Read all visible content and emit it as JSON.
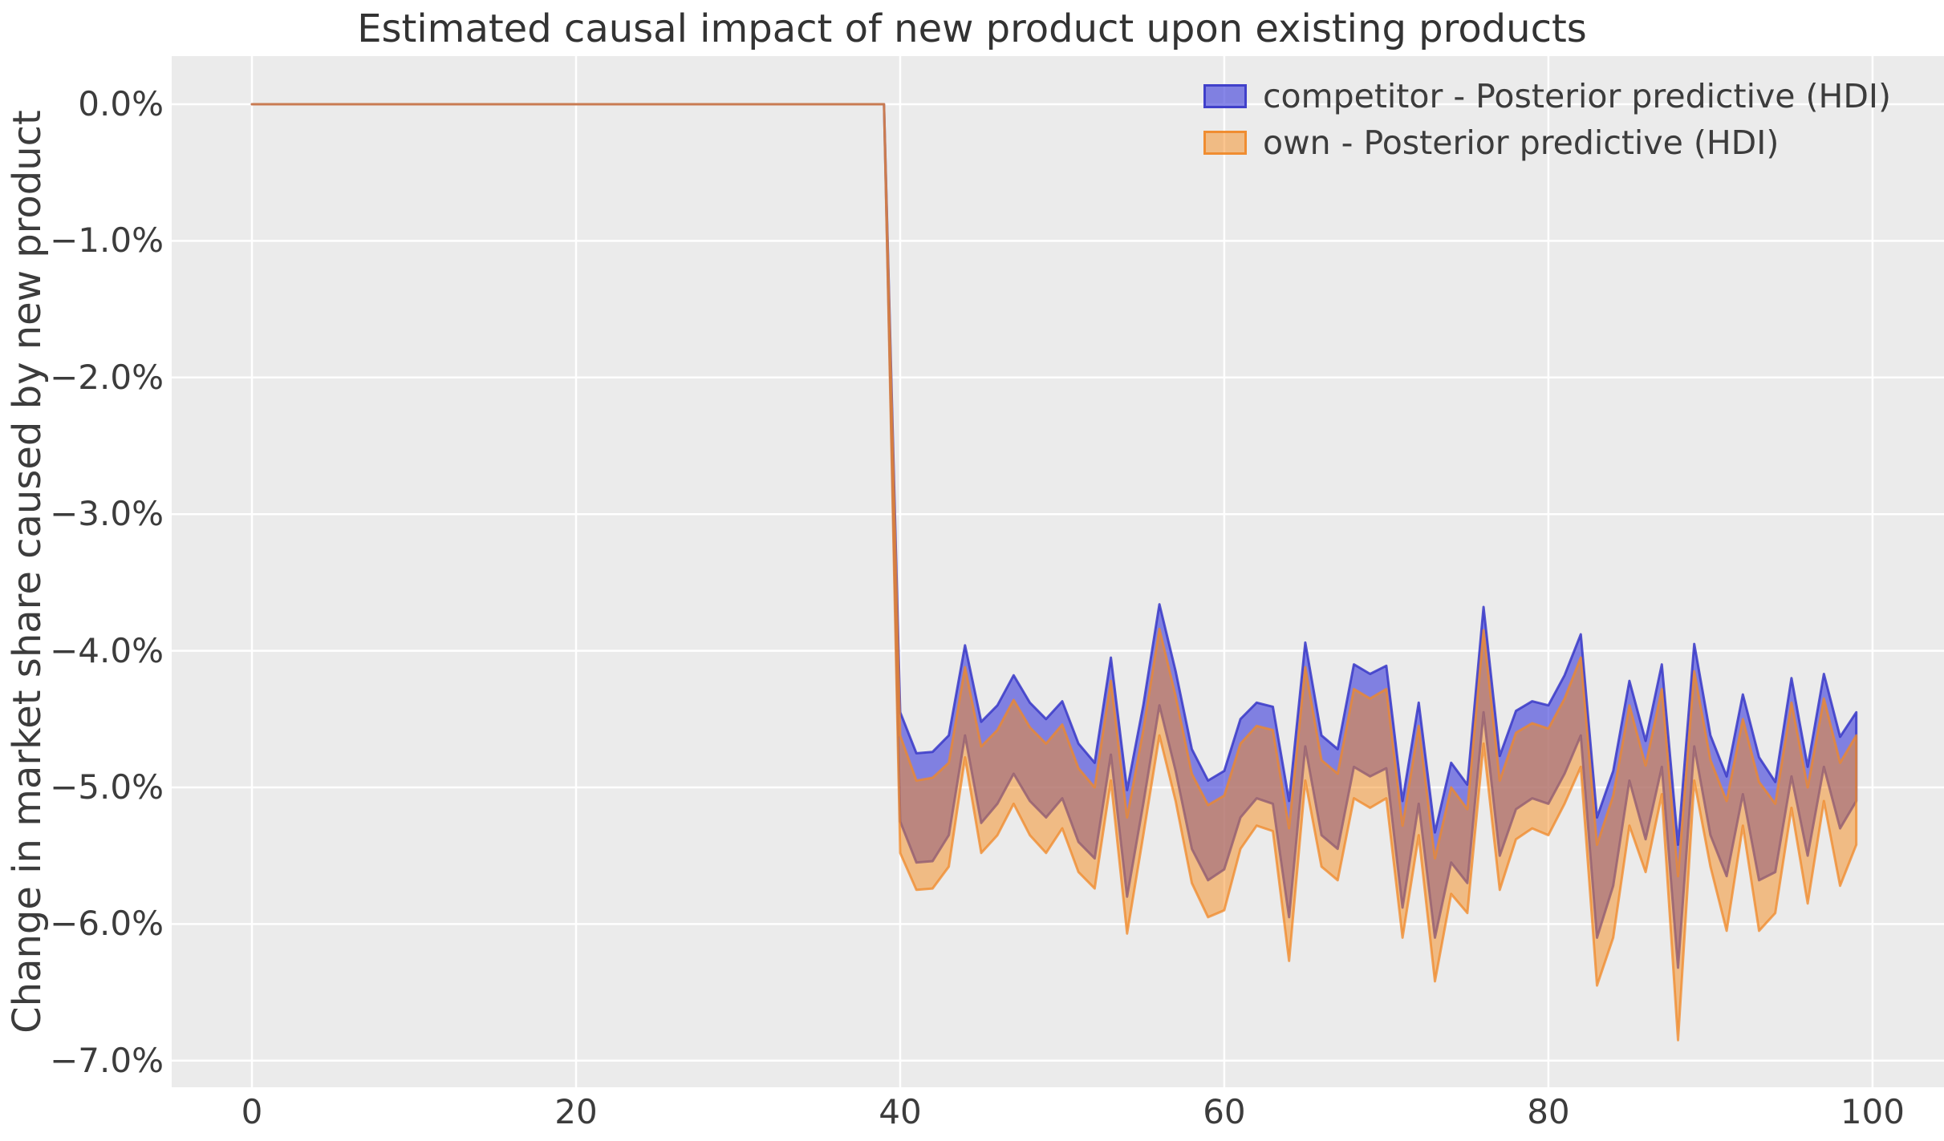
{
  "chart_data": {
    "type": "area",
    "title": "Estimated causal impact of new product upon existing products",
    "xlabel": "",
    "ylabel": "Change in market share caused by new product",
    "legend_position": "upper right",
    "grid": true,
    "plot_bg": "#ebebeb",
    "grid_color": "#ffffff",
    "text_color": "#3c3c3c",
    "xlim": [
      -4.95,
      104.41
    ],
    "ylim": [
      -7.195,
      0.352
    ],
    "x_ticks": [
      {
        "label": "0",
        "value": 0
      },
      {
        "label": "20",
        "value": 20
      },
      {
        "label": "40",
        "value": 40
      },
      {
        "label": "60",
        "value": 60
      },
      {
        "label": "80",
        "value": 80
      },
      {
        "label": "100",
        "value": 100
      }
    ],
    "y_ticks": [
      {
        "label": "0.0%",
        "value": 0
      },
      {
        "label": "−1.0%",
        "value": -1
      },
      {
        "label": "−2.0%",
        "value": -2
      },
      {
        "label": "−3.0%",
        "value": -3
      },
      {
        "label": "−4.0%",
        "value": -4
      },
      {
        "label": "−5.0%",
        "value": -5
      },
      {
        "label": "−6.0%",
        "value": -6
      },
      {
        "label": "−7.0%",
        "value": -7
      }
    ],
    "x": {
      "start": 0,
      "step": 1,
      "n": 100,
      "intervention_index": 40
    },
    "units": "percent change in market share; HDI bands are zero for x < 40 (pre-intervention) and negative after the new product launch at x = 40",
    "series": [
      {
        "name": "competitor - Posterior predictive (HDI)",
        "fill": "#4646dc",
        "fill_opacity": 0.65,
        "edge": "#3838c8",
        "edge_opacity": 0.85,
        "edge_width": 3,
        "hi": [
          0,
          0,
          0,
          0,
          0,
          0,
          0,
          0,
          0,
          0,
          0,
          0,
          0,
          0,
          0,
          0,
          0,
          0,
          0,
          0,
          0,
          0,
          0,
          0,
          0,
          0,
          0,
          0,
          0,
          0,
          0,
          0,
          0,
          0,
          0,
          0,
          0,
          0,
          0,
          0,
          -4.45,
          -4.75,
          -4.74,
          -4.62,
          -3.96,
          -4.52,
          -4.4,
          -4.18,
          -4.38,
          -4.5,
          -4.37,
          -4.68,
          -4.82,
          -4.05,
          -5.02,
          -4.4,
          -3.66,
          -4.15,
          -4.72,
          -4.95,
          -4.88,
          -4.5,
          -4.38,
          -4.41,
          -5.1,
          -3.94,
          -4.62,
          -4.72,
          -4.1,
          -4.17,
          -4.11,
          -5.1,
          -4.38,
          -5.33,
          -4.82,
          -4.98,
          -3.68,
          -4.77,
          -4.44,
          -4.37,
          -4.4,
          -4.18,
          -3.88,
          -5.22,
          -4.88,
          -4.22,
          -4.66,
          -4.1,
          -5.42,
          -3.95,
          -4.62,
          -4.92,
          -4.32,
          -4.78,
          -4.96,
          -4.2,
          -4.85,
          -4.17,
          -4.63,
          -4.45
        ],
        "lo": [
          0,
          0,
          0,
          0,
          0,
          0,
          0,
          0,
          0,
          0,
          0,
          0,
          0,
          0,
          0,
          0,
          0,
          0,
          0,
          0,
          0,
          0,
          0,
          0,
          0,
          0,
          0,
          0,
          0,
          0,
          0,
          0,
          0,
          0,
          0,
          0,
          0,
          0,
          0,
          0,
          -5.25,
          -5.55,
          -5.54,
          -5.35,
          -4.62,
          -5.26,
          -5.12,
          -4.9,
          -5.1,
          -5.22,
          -5.08,
          -5.4,
          -5.52,
          -4.76,
          -5.8,
          -5.12,
          -4.4,
          -4.88,
          -5.45,
          -5.68,
          -5.6,
          -5.22,
          -5.08,
          -5.12,
          -5.95,
          -4.7,
          -5.35,
          -5.45,
          -4.85,
          -4.92,
          -4.86,
          -5.88,
          -5.12,
          -6.1,
          -5.55,
          -5.7,
          -4.45,
          -5.5,
          -5.16,
          -5.08,
          -5.12,
          -4.9,
          -4.62,
          -6.1,
          -5.72,
          -4.95,
          -5.38,
          -4.85,
          -6.32,
          -4.7,
          -5.35,
          -5.65,
          -5.05,
          -5.68,
          -5.62,
          -4.92,
          -5.5,
          -4.85,
          -5.3,
          -5.1
        ]
      },
      {
        "name": "own - Posterior predictive (HDI)",
        "fill": "#f68c1e",
        "fill_opacity": 0.5,
        "edge": "#f08828",
        "edge_opacity": 0.75,
        "edge_width": 3,
        "hi": [
          0,
          0,
          0,
          0,
          0,
          0,
          0,
          0,
          0,
          0,
          0,
          0,
          0,
          0,
          0,
          0,
          0,
          0,
          0,
          0,
          0,
          0,
          0,
          0,
          0,
          0,
          0,
          0,
          0,
          0,
          0,
          0,
          0,
          0,
          0,
          0,
          0,
          0,
          0,
          0,
          -4.62,
          -4.95,
          -4.93,
          -4.82,
          -4.12,
          -4.7,
          -4.58,
          -4.36,
          -4.56,
          -4.68,
          -4.54,
          -4.86,
          -5.0,
          -4.22,
          -5.22,
          -4.58,
          -3.84,
          -4.33,
          -4.9,
          -5.13,
          -5.06,
          -4.68,
          -4.55,
          -4.58,
          -5.3,
          -4.12,
          -4.8,
          -4.9,
          -4.28,
          -4.35,
          -4.28,
          -5.28,
          -4.55,
          -5.52,
          -5.0,
          -5.16,
          -3.85,
          -4.95,
          -4.6,
          -4.53,
          -4.57,
          -4.35,
          -4.05,
          -5.42,
          -5.06,
          -4.4,
          -4.84,
          -4.28,
          -5.65,
          -4.15,
          -4.8,
          -5.1,
          -4.5,
          -4.96,
          -5.12,
          -4.38,
          -5.0,
          -4.35,
          -4.82,
          -4.62
        ],
        "lo": [
          0,
          0,
          0,
          0,
          0,
          0,
          0,
          0,
          0,
          0,
          0,
          0,
          0,
          0,
          0,
          0,
          0,
          0,
          0,
          0,
          0,
          0,
          0,
          0,
          0,
          0,
          0,
          0,
          0,
          0,
          0,
          0,
          0,
          0,
          0,
          0,
          0,
          0,
          0,
          0,
          -5.48,
          -5.75,
          -5.74,
          -5.58,
          -4.78,
          -5.48,
          -5.35,
          -5.12,
          -5.35,
          -5.48,
          -5.3,
          -5.62,
          -5.74,
          -4.95,
          -6.07,
          -5.35,
          -4.62,
          -5.1,
          -5.7,
          -5.95,
          -5.9,
          -5.45,
          -5.28,
          -5.32,
          -6.27,
          -4.95,
          -5.58,
          -5.68,
          -5.08,
          -5.15,
          -5.08,
          -6.1,
          -5.35,
          -6.42,
          -5.78,
          -5.92,
          -4.68,
          -5.75,
          -5.38,
          -5.3,
          -5.35,
          -5.12,
          -4.85,
          -6.45,
          -6.1,
          -5.28,
          -5.62,
          -5.05,
          -6.85,
          -4.95,
          -5.58,
          -6.05,
          -5.28,
          -6.05,
          -5.92,
          -5.15,
          -5.85,
          -5.1,
          -5.72,
          -5.42
        ]
      }
    ]
  }
}
